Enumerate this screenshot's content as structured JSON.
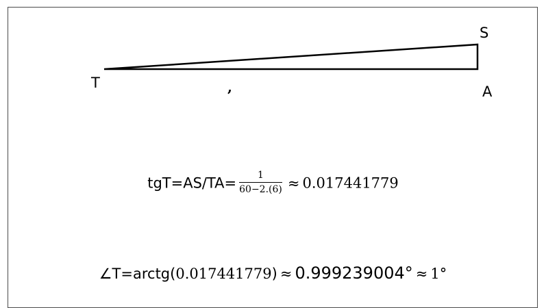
{
  "diagram": {
    "vertices": {
      "T": "T",
      "S": "S",
      "A": "A"
    },
    "tick_mark": ","
  },
  "formula_tangent": {
    "lhs": "tgT=AS/TA=",
    "numerator": "1",
    "denominator": "60−2.(6)",
    "approx_symbol": "≈",
    "result": "0.017441779"
  },
  "formula_angle": {
    "lhs": "∠T=arctg(",
    "argument": "0.017441779",
    "close_paren": ")",
    "approx_symbol_1": "≈",
    "angle_value": "0.999239004°",
    "approx_symbol_2": "≈",
    "rounded_value": "1°"
  },
  "colors": {
    "line": "#000000",
    "frame_border": "#4a4a4a",
    "background": "#ffffff"
  }
}
